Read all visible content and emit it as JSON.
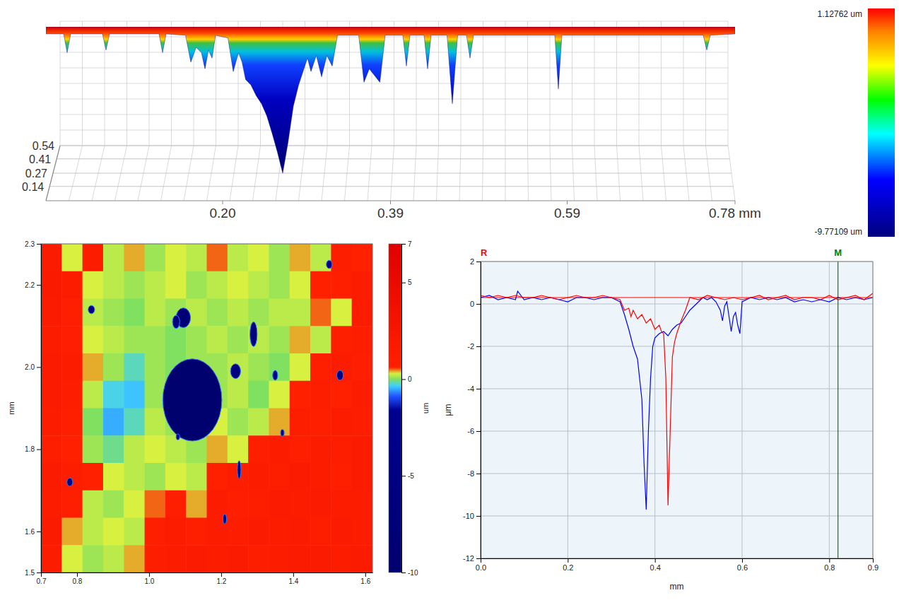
{
  "chart_data": [
    {
      "type": "surface3d",
      "x": [
        0,
        0.02,
        0.024,
        0.028,
        0.064,
        0.068,
        0.072,
        0.128,
        0.132,
        0.136,
        0.158,
        0.164,
        0.17,
        0.176,
        0.18,
        0.184,
        0.188,
        0.192,
        0.206,
        0.212,
        0.218,
        0.222,
        0.226,
        0.232,
        0.238,
        0.244,
        0.25,
        0.256,
        0.262,
        0.268,
        0.274,
        0.28,
        0.286,
        0.29,
        0.296,
        0.3,
        0.306,
        0.312,
        0.318,
        0.324,
        0.33,
        0.354,
        0.36,
        0.366,
        0.372,
        0.378,
        0.384,
        0.404,
        0.408,
        0.412,
        0.428,
        0.432,
        0.436,
        0.454,
        0.46,
        0.466,
        0.476,
        0.48,
        0.484,
        0.576,
        0.58,
        0.584,
        0.744,
        0.748,
        0.752,
        0.78
      ],
      "z": [
        0.6,
        0.6,
        -0.8,
        0.6,
        0.6,
        -0.6,
        0.6,
        0.6,
        -0.8,
        0.6,
        0.5,
        -1.5,
        -0.4,
        -0.8,
        -2.0,
        -0.6,
        -1.2,
        0.5,
        0.3,
        -2.2,
        -0.8,
        -1.5,
        -2.8,
        -3.2,
        -4.0,
        -4.6,
        -5.5,
        -6.8,
        -8.2,
        -9.77,
        -7.5,
        -4.8,
        -3.2,
        -2.4,
        -1.2,
        -2.2,
        -1.0,
        -2.6,
        -1.0,
        -1.8,
        0.5,
        0.5,
        -3.0,
        -2.0,
        -2.5,
        -3.0,
        0.5,
        0.5,
        -1.8,
        0.5,
        0.5,
        -2.0,
        0.5,
        0.5,
        -4.6,
        0.5,
        0.5,
        -1.2,
        0.5,
        0.5,
        -3.5,
        0.5,
        0.5,
        -0.6,
        0.5,
        0.6
      ],
      "xlim": [
        0,
        0.78
      ],
      "xticks": [
        {
          "value": 0.2,
          "label": "0.20"
        },
        0.39,
        0.59,
        {
          "value": 0.78,
          "label": "0.78 mm"
        }
      ],
      "ylim": [
        0,
        0.54
      ],
      "yticks": [
        0.14,
        0.27,
        0.41,
        0.54
      ],
      "grid": true,
      "colorbar": {
        "range": [
          -9.77109,
          1.12762
        ],
        "ticks": [
          {
            "value": 1.12762,
            "label": "1.12762 um"
          },
          {
            "value": -9.77109,
            "label": "-9.77109 um"
          }
        ]
      }
    },
    {
      "type": "heatmap",
      "y_label": "mm",
      "xlim": [
        0.7,
        1.62
      ],
      "ylim": [
        1.5,
        2.3
      ],
      "xticks": [
        0.7,
        0.8,
        {
          "value": 1,
          "label": "1.0"
        },
        1.2,
        1.4,
        1.6
      ],
      "yticks": [
        1.5,
        1.6,
        1.8,
        {
          "value": 2,
          "label": "2.0"
        },
        2.2,
        2.3
      ],
      "cells": [
        [
          1.5,
          0.3,
          1.2,
          0.2,
          0.4,
          0.1,
          0.3,
          0.2,
          0.5,
          0.2,
          0.3,
          0.1,
          0.4,
          0.2,
          1.0,
          0.6
        ],
        [
          1.8,
          1.2,
          0.3,
          0.2,
          0.1,
          0.2,
          0.3,
          0.1,
          0.2,
          0.3,
          0.2,
          0.1,
          0.3,
          0.6,
          0.8,
          1.2
        ],
        [
          1.4,
          0.8,
          0.2,
          0.1,
          0.0,
          0.2,
          0.1,
          0.2,
          0.1,
          0.2,
          0.1,
          0.2,
          0.2,
          0.5,
          0.3,
          1.4
        ],
        [
          1.2,
          0.9,
          0.3,
          0.2,
          0.1,
          0.1,
          0.0,
          0.1,
          0.2,
          0.1,
          0.2,
          0.1,
          0.4,
          0.2,
          0.9,
          1.1
        ],
        [
          1.6,
          1.3,
          0.4,
          0.1,
          -0.2,
          0.1,
          0.0,
          0.1,
          0.1,
          0.2,
          0.1,
          0.0,
          0.3,
          0.8,
          1.2,
          0.9
        ],
        [
          1.5,
          1.1,
          0.2,
          -0.3,
          -0.4,
          0.1,
          0.1,
          0.0,
          0.1,
          0.2,
          0.0,
          0.3,
          0.6,
          1.0,
          0.7,
          1.3
        ],
        [
          1.3,
          0.9,
          0.0,
          -0.5,
          -0.2,
          0.2,
          0.1,
          0.2,
          0.3,
          0.1,
          0.2,
          0.4,
          1.1,
          0.8,
          1.2,
          1.0
        ],
        [
          1.1,
          0.7,
          0.1,
          -0.1,
          0.2,
          0.3,
          0.2,
          0.1,
          0.4,
          0.3,
          0.8,
          1.2,
          0.9,
          1.3,
          1.1,
          1.4
        ],
        [
          1.4,
          1.0,
          0.6,
          0.3,
          0.2,
          0.1,
          0.3,
          0.2,
          0.7,
          1.0,
          1.3,
          1.0,
          1.4,
          1.2,
          0.9,
          1.5
        ],
        [
          1.2,
          0.8,
          0.2,
          0.1,
          0.3,
          0.5,
          0.9,
          0.4,
          1.2,
          0.8,
          1.1,
          1.5,
          1.2,
          1.6,
          1.3,
          1.2
        ],
        [
          1.5,
          0.4,
          0.2,
          0.3,
          0.2,
          0.8,
          1.2,
          0.9,
          1.3,
          1.1,
          1.6,
          1.2,
          1.4,
          1.1,
          1.5,
          1.3
        ],
        [
          1.3,
          0.3,
          0.1,
          0.2,
          0.4,
          1.1,
          1.3,
          1.5,
          1.2,
          1.4,
          1.1,
          1.3,
          1.6,
          1.4,
          1.2,
          1.6
        ]
      ],
      "pits": [
        {
          "x": 1.12,
          "y": 1.92,
          "rx": 0.082,
          "ry": 0.1,
          "depth": -10
        },
        {
          "x": 1.095,
          "y": 2.12,
          "rx": 0.02,
          "ry": 0.024,
          "depth": -8
        },
        {
          "x": 1.075,
          "y": 2.11,
          "rx": 0.01,
          "ry": 0.016,
          "depth": -6
        },
        {
          "x": 0.84,
          "y": 2.14,
          "rx": 0.009,
          "ry": 0.01,
          "depth": -5
        },
        {
          "x": 1.29,
          "y": 2.08,
          "rx": 0.01,
          "ry": 0.03,
          "depth": -6
        },
        {
          "x": 1.24,
          "y": 1.99,
          "rx": 0.014,
          "ry": 0.018,
          "depth": -6
        },
        {
          "x": 1.35,
          "y": 1.98,
          "rx": 0.007,
          "ry": 0.012,
          "depth": -4
        },
        {
          "x": 1.53,
          "y": 1.98,
          "rx": 0.009,
          "ry": 0.012,
          "depth": -4
        },
        {
          "x": 0.78,
          "y": 1.72,
          "rx": 0.008,
          "ry": 0.01,
          "depth": -4
        },
        {
          "x": 1.25,
          "y": 1.75,
          "rx": 0.005,
          "ry": 0.022,
          "depth": -4
        },
        {
          "x": 1.5,
          "y": 2.25,
          "rx": 0.008,
          "ry": 0.01,
          "depth": -4
        },
        {
          "x": 1.37,
          "y": 1.84,
          "rx": 0.005,
          "ry": 0.008,
          "depth": -3
        },
        {
          "x": 1.21,
          "y": 1.63,
          "rx": 0.005,
          "ry": 0.012,
          "depth": -3
        },
        {
          "x": 1.08,
          "y": 1.83,
          "rx": 0.005,
          "ry": 0.007,
          "depth": -3
        }
      ],
      "colorbar": {
        "range": [
          -10,
          7
        ],
        "ticks": [
          -10,
          -5,
          0,
          5,
          7
        ],
        "label": "um"
      }
    },
    {
      "type": "line",
      "x_label": "mm",
      "y_label": "μm",
      "xlim": [
        0,
        0.9
      ],
      "ylim": [
        -12,
        2
      ],
      "xticks": [
        {
          "value": 0,
          "label": "0.0"
        },
        0.2,
        0.4,
        0.6,
        0.8,
        0.9
      ],
      "yticks": [
        -12,
        -10,
        -8,
        -6,
        -4,
        -2,
        0,
        2
      ],
      "grid": true,
      "series": [
        {
          "color": "#0000ff",
          "x": [
            0,
            0.02,
            0.04,
            0.06,
            0.08,
            0.085,
            0.1,
            0.12,
            0.14,
            0.16,
            0.18,
            0.2,
            0.22,
            0.24,
            0.26,
            0.28,
            0.3,
            0.31,
            0.32,
            0.33,
            0.34,
            0.35,
            0.36,
            0.37,
            0.375,
            0.38,
            0.385,
            0.39,
            0.395,
            0.4,
            0.41,
            0.42,
            0.43,
            0.44,
            0.45,
            0.46,
            0.47,
            0.48,
            0.49,
            0.5,
            0.51,
            0.52,
            0.53,
            0.54,
            0.55,
            0.555,
            0.56,
            0.565,
            0.57,
            0.575,
            0.58,
            0.585,
            0.59,
            0.595,
            0.6,
            0.62,
            0.64,
            0.66,
            0.68,
            0.7,
            0.72,
            0.74,
            0.76,
            0.78,
            0.8,
            0.82,
            0.84,
            0.86,
            0.88,
            0.9
          ],
          "values": [
            0.3,
            0.4,
            0.2,
            0.3,
            0.2,
            0.6,
            0.2,
            0.3,
            0.2,
            0.3,
            0.2,
            0.1,
            0.3,
            0.3,
            0.2,
            0.3,
            0.3,
            0.2,
            0.1,
            -0.5,
            -1.2,
            -2.0,
            -2.6,
            -4.5,
            -7.5,
            -9.7,
            -6.0,
            -3.5,
            -2.0,
            -1.6,
            -1.4,
            -1.3,
            -1.5,
            -1.2,
            -1.0,
            -0.9,
            -0.6,
            -0.3,
            -0.1,
            0.1,
            0.3,
            0.2,
            0.3,
            0.1,
            -0.3,
            -0.8,
            -0.1,
            0.1,
            -0.6,
            -1.3,
            -0.6,
            -0.4,
            -1.0,
            -1.4,
            0.1,
            0.3,
            0.2,
            0.3,
            0.2,
            0.3,
            0.1,
            0.2,
            0.1,
            0.2,
            0.1,
            0.3,
            0.2,
            0.3,
            0.2,
            0.3
          ]
        },
        {
          "color": "#ff0000",
          "x": [
            0,
            0.02,
            0.04,
            0.06,
            0.08,
            0.1,
            0.12,
            0.14,
            0.16,
            0.18,
            0.2,
            0.22,
            0.24,
            0.26,
            0.28,
            0.3,
            0.32,
            0.33,
            0.34,
            0.345,
            0.35,
            0.36,
            0.37,
            0.38,
            0.39,
            0.4,
            0.41,
            0.415,
            0.42,
            0.425,
            0.43,
            0.435,
            0.44,
            0.445,
            0.45,
            0.46,
            0.47,
            0.48,
            0.5,
            0.52,
            0.54,
            0.56,
            0.58,
            0.6,
            0.62,
            0.64,
            0.66,
            0.68,
            0.7,
            0.72,
            0.74,
            0.76,
            0.78,
            0.8,
            0.82,
            0.84,
            0.86,
            0.88,
            0.9
          ],
          "values": [
            0.4,
            0.3,
            0.4,
            0.3,
            0.4,
            0.3,
            0.3,
            0.4,
            0.3,
            0.2,
            0.3,
            0.4,
            0.3,
            0.3,
            0.4,
            0.3,
            0.2,
            -0.3,
            -0.2,
            -0.6,
            -0.3,
            -0.7,
            -0.5,
            -0.9,
            -0.7,
            -1.2,
            -1.0,
            -1.3,
            -1.4,
            -3.5,
            -9.5,
            -6.0,
            -2.5,
            -1.8,
            -1.4,
            -0.8,
            -0.3,
            0.3,
            0.2,
            0.4,
            0.3,
            0.2,
            0.3,
            0.2,
            0.3,
            0.4,
            0.2,
            0.3,
            0.4,
            0.2,
            0.3,
            0.3,
            0.2,
            0.4,
            0.2,
            0.3,
            0.4,
            0.2,
            0.5
          ]
        }
      ],
      "annotations": [
        {
          "text": "R",
          "y": 0.3,
          "color": "#ff0000"
        },
        {
          "text": "M",
          "x": 0.82,
          "color": "#008000"
        }
      ]
    }
  ]
}
